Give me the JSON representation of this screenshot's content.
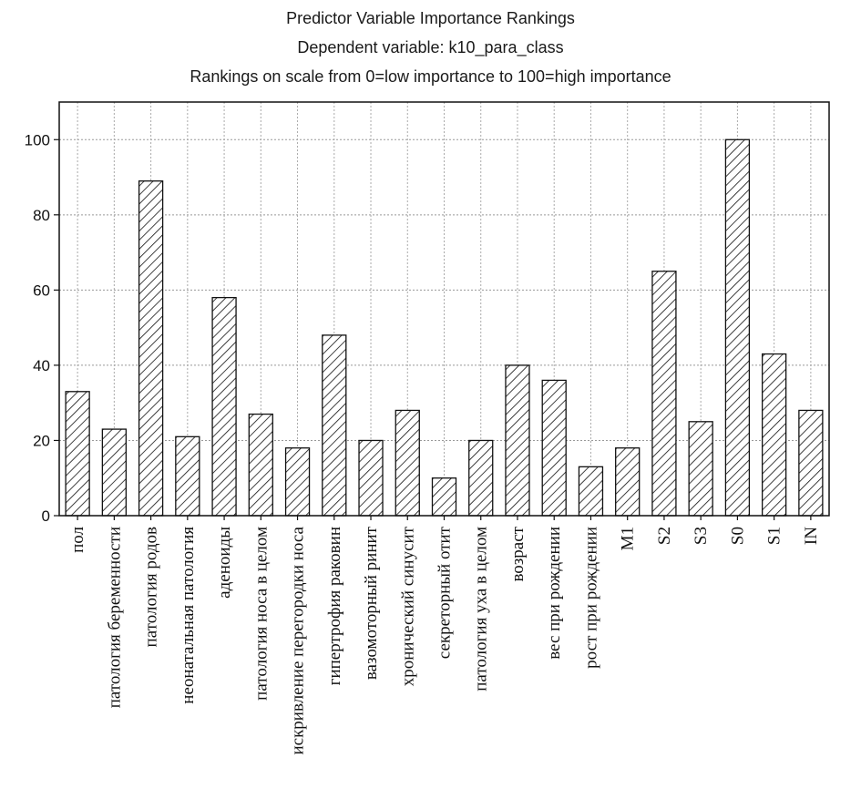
{
  "chart_data": {
    "type": "bar",
    "title": "Predictor Variable Importance Rankings",
    "subtitle_1": "Dependent variable: k10_para_class",
    "subtitle_2": "Rankings on scale from 0=low importance to 100=high importance",
    "xlabel": "",
    "ylabel": "",
    "ylim": [
      0,
      110
    ],
    "yticks": [
      0,
      20,
      40,
      60,
      80,
      100
    ],
    "grid": true,
    "bar_fill": "hatched",
    "categories": [
      "пол",
      "патология беременности",
      "патология родов",
      "неонатальная патология",
      "аденоиды",
      "патология носа в целом",
      "искривление перегородки носа",
      "гипертрофия раковин",
      "вазомоторный ринит",
      "хронический синусит",
      "секреторный отит",
      "патология уха в целом",
      "возраст",
      "вес при рождении",
      "рост при рождении",
      "M1",
      "S2",
      "S3",
      "S0",
      "S1",
      "IN"
    ],
    "values": [
      33,
      23,
      89,
      21,
      58,
      27,
      18,
      48,
      20,
      28,
      10,
      20,
      40,
      36,
      13,
      18,
      65,
      25,
      100,
      43,
      28
    ]
  }
}
